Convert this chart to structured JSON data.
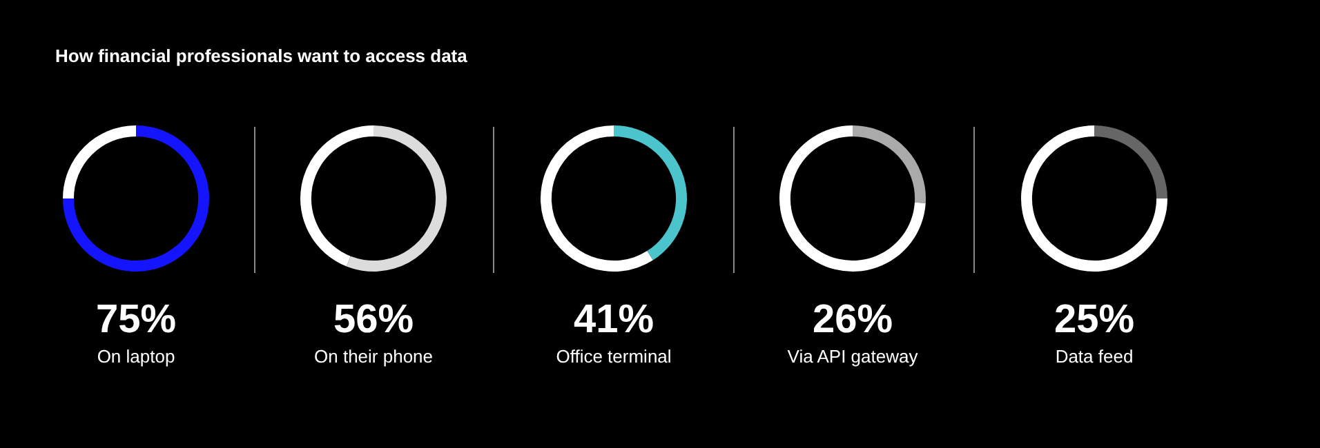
{
  "chart_data": [
    {
      "type": "donut",
      "title": "How financial professionals want to access data",
      "categories": [
        null,
        null
      ],
      "values": [
        75,
        25
      ],
      "colors": [
        "#1414ff",
        "#ffffff"
      ],
      "annotations": [
        "75%",
        "On laptop"
      ]
    },
    {
      "type": "donut",
      "categories": [
        null,
        null
      ],
      "values": [
        56,
        44
      ],
      "colors": [
        "#dcdcdc",
        "#ffffff"
      ],
      "annotations": [
        "56%",
        "On their phone"
      ]
    },
    {
      "type": "donut",
      "categories": [
        null,
        null
      ],
      "values": [
        41,
        59
      ],
      "colors": [
        "#4cc4cc",
        "#ffffff"
      ],
      "annotations": [
        "41%",
        "Office terminal"
      ]
    },
    {
      "type": "donut",
      "categories": [
        null,
        null
      ],
      "values": [
        26,
        74
      ],
      "colors": [
        "#aaaaaa",
        "#ffffff"
      ],
      "annotations": [
        "26%",
        "Via API gateway"
      ]
    },
    {
      "type": "donut",
      "categories": [
        null,
        null
      ],
      "values": [
        25,
        75
      ],
      "colors": [
        "#666666",
        "#ffffff"
      ],
      "annotations": [
        "25%",
        "Data feed"
      ]
    }
  ]
}
